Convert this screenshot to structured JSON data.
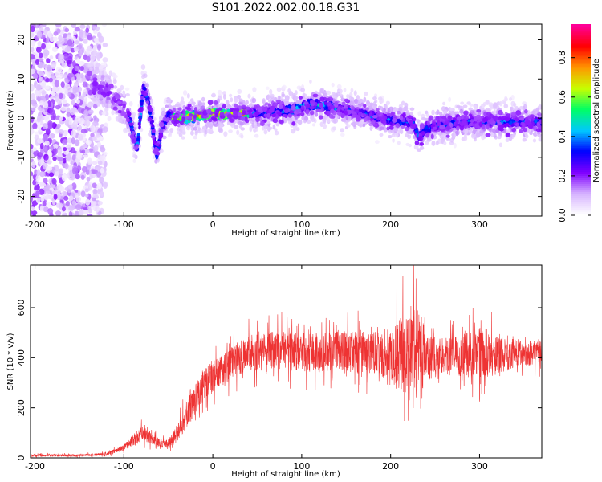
{
  "title": "S101.2022.002.00.18.G31",
  "chart_data": [
    {
      "type": "heatmap",
      "xlabel": "Height of straight line (km)",
      "ylabel": "Frequency (Hz)",
      "xlim": [
        -205,
        370
      ],
      "ylim": [
        -25,
        24
      ],
      "xticks": [
        -200,
        -100,
        0,
        100,
        200,
        300
      ],
      "yticks": [
        -20,
        -10,
        0,
        10,
        20
      ],
      "colorbar": {
        "label": "Normalized spectral amplitude",
        "range": [
          0,
          0.97
        ],
        "ticks": [
          0.0,
          0.2,
          0.4,
          0.6,
          0.8
        ],
        "colors": [
          "#ffffff",
          "#d6b3ff",
          "#8000ff",
          "#0000ff",
          "#00c8ff",
          "#00ff64",
          "#c8ff00",
          "#ff9600",
          "#ff0000",
          "#ff0096"
        ]
      },
      "centerline": {
        "x": [
          -135,
          -115,
          -95,
          -85,
          -78,
          -72,
          -68,
          -63,
          -58,
          -50,
          -40,
          -20,
          0,
          30,
          60,
          90,
          110,
          130,
          150,
          170,
          190,
          210,
          225,
          232,
          238,
          250,
          280,
          310,
          340,
          370
        ],
        "y": [
          9,
          6,
          1,
          -8,
          8,
          4,
          -2,
          -10,
          -3,
          1,
          0,
          0.5,
          1,
          1,
          1.5,
          2,
          3.5,
          3,
          2,
          1,
          0,
          -1,
          -1,
          -5,
          -3,
          -2,
          -1,
          -1,
          -1,
          -1
        ]
      }
    },
    {
      "type": "line",
      "color": "#ee3333",
      "xlabel": "Height of straight line (km)",
      "ylabel": "SNR (10 * v/v)",
      "xlim": [
        -205,
        370
      ],
      "ylim": [
        0,
        770
      ],
      "xticks": [
        -200,
        -100,
        0,
        100,
        200,
        300
      ],
      "yticks": [
        0,
        200,
        400,
        600
      ],
      "envelope": {
        "x": [
          -205,
          -150,
          -120,
          -100,
          -90,
          -80,
          -70,
          -60,
          -50,
          -40,
          -30,
          -20,
          -10,
          0,
          10,
          20,
          30,
          40,
          50,
          60,
          80,
          100,
          120,
          140,
          160,
          180,
          190,
          200,
          210,
          220,
          230,
          240,
          250,
          260,
          270,
          280,
          290,
          300,
          310,
          320,
          330,
          340,
          350,
          360,
          370
        ],
        "mean": [
          10,
          10,
          15,
          40,
          70,
          100,
          80,
          60,
          55,
          100,
          170,
          230,
          290,
          320,
          350,
          380,
          400,
          420,
          420,
          430,
          430,
          420,
          420,
          430,
          420,
          420,
          410,
          410,
          410,
          420,
          420,
          400,
          410,
          410,
          410,
          410,
          410,
          420,
          420,
          410,
          410,
          420,
          410,
          420,
          420
        ],
        "spread": [
          8,
          8,
          10,
          20,
          40,
          50,
          40,
          30,
          30,
          60,
          90,
          100,
          110,
          110,
          110,
          110,
          110,
          120,
          120,
          120,
          130,
          130,
          130,
          130,
          140,
          140,
          150,
          180,
          250,
          280,
          300,
          180,
          130,
          120,
          130,
          140,
          160,
          180,
          160,
          130,
          110,
          100,
          80,
          80,
          80
        ]
      }
    }
  ]
}
